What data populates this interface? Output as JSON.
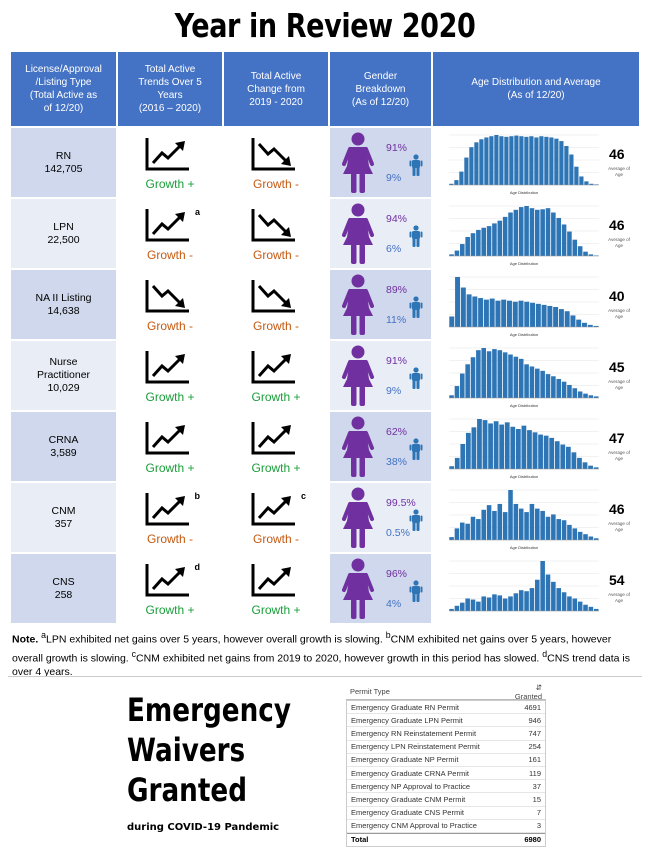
{
  "title": "Year in Review 2020",
  "headers": [
    "License/Approval\n/Listing Type\n(Total Active as\nof 12/20)",
    "Total Active\nTrends Over 5\nYears\n(2016 – 2020)",
    "Total Active\nChange from\n2019 - 2020",
    "Gender\nBreakdown\n(As of 12/20)",
    "Age Distribution and Average\n(As of 12/20)"
  ],
  "colors": {
    "header": "#4472c4",
    "female": "#7030a0",
    "male": "#2e75b6",
    "growth_up": "#1a9e3a",
    "growth_down": "#c55a11",
    "bar": "#2e75b6"
  },
  "rows": [
    {
      "name": "RN",
      "total": "142,705",
      "trend5": "up",
      "trend5_label": "Growth +",
      "trend5_note": "",
      "change": "down",
      "change_label": "Growth -",
      "change_note": "",
      "female_pct": "91%",
      "male_pct": "9%",
      "avg_age": "46",
      "avg_label": "Average of\nAge"
    },
    {
      "name": "LPN",
      "total": "22,500",
      "trend5": "up",
      "trend5_label": "Growth -",
      "trend5_note": "a",
      "change": "down",
      "change_label": "Growth -",
      "change_note": "",
      "female_pct": "94%",
      "male_pct": "6%",
      "avg_age": "46",
      "avg_label": "Average of\nAge"
    },
    {
      "name": "NA II Listing",
      "total": "14,638",
      "trend5": "down",
      "trend5_label": "Growth -",
      "trend5_note": "",
      "change": "down",
      "change_label": "Growth -",
      "change_note": "",
      "female_pct": "89%",
      "male_pct": "11%",
      "avg_age": "40",
      "avg_label": "Average of\nAge"
    },
    {
      "name": "Nurse\nPractitioner",
      "total": "10,029",
      "trend5": "up",
      "trend5_label": "Growth +",
      "trend5_note": "",
      "change": "up",
      "change_label": "Growth +",
      "change_note": "",
      "female_pct": "91%",
      "male_pct": "9%",
      "avg_age": "45",
      "avg_label": "Average of\nAge"
    },
    {
      "name": "CRNA",
      "total": "3,589",
      "trend5": "up",
      "trend5_label": "Growth +",
      "trend5_note": "",
      "change": "up",
      "change_label": "Growth +",
      "change_note": "",
      "female_pct": "62%",
      "male_pct": "38%",
      "avg_age": "47",
      "avg_label": "Average of\nAge"
    },
    {
      "name": "CNM",
      "total": "357",
      "trend5": "up",
      "trend5_label": "Growth -",
      "trend5_note": "b",
      "change": "up",
      "change_label": "Growth -",
      "change_note": "c",
      "female_pct": "99.5%",
      "male_pct": "0.5%",
      "avg_age": "46",
      "avg_label": "Average of\nAge"
    },
    {
      "name": "CNS",
      "total": "258",
      "trend5": "up",
      "trend5_label": "Growth +",
      "trend5_note": "d",
      "change": "up",
      "change_label": "Growth +",
      "change_note": "",
      "female_pct": "96%",
      "male_pct": "4%",
      "avg_age": "54",
      "avg_label": "Average of\nAge"
    }
  ],
  "chart_data": [
    {
      "type": "bar",
      "title": "RN",
      "xlabel": "Age Distribution",
      "values": [
        2,
        8,
        22,
        45,
        62,
        70,
        75,
        78,
        80,
        82,
        80,
        79,
        80,
        81,
        80,
        79,
        80,
        78,
        80,
        79,
        78,
        76,
        72,
        64,
        50,
        30,
        14,
        6,
        2,
        1
      ]
    },
    {
      "type": "bar",
      "title": "LPN",
      "xlabel": "Age Distribution",
      "values": [
        3,
        10,
        22,
        35,
        42,
        48,
        52,
        55,
        60,
        65,
        72,
        80,
        85,
        90,
        92,
        88,
        85,
        86,
        88,
        80,
        70,
        58,
        45,
        30,
        18,
        8,
        3,
        1
      ]
    },
    {
      "type": "bar",
      "title": "NA II Listing",
      "xlabel": "Age Distribution",
      "values": [
        20,
        95,
        75,
        62,
        58,
        55,
        52,
        54,
        50,
        52,
        50,
        48,
        50,
        48,
        46,
        44,
        42,
        40,
        38,
        34,
        30,
        22,
        14,
        8,
        4,
        2
      ]
    },
    {
      "type": "bar",
      "title": "Nurse Practitioner",
      "xlabel": "Age Distribution",
      "values": [
        5,
        22,
        45,
        62,
        75,
        88,
        92,
        86,
        90,
        88,
        84,
        80,
        76,
        72,
        62,
        58,
        54,
        50,
        44,
        40,
        35,
        30,
        24,
        18,
        12,
        8,
        5,
        3
      ]
    },
    {
      "type": "bar",
      "title": "CRNA",
      "xlabel": "Age Distribution",
      "values": [
        5,
        20,
        45,
        65,
        75,
        90,
        88,
        82,
        86,
        80,
        84,
        76,
        72,
        78,
        70,
        66,
        62,
        60,
        56,
        50,
        44,
        40,
        30,
        20,
        12,
        6,
        3
      ]
    },
    {
      "type": "bar",
      "title": "CNM",
      "xlabel": "Age Distribution",
      "values": [
        5,
        20,
        30,
        28,
        40,
        36,
        52,
        60,
        50,
        62,
        48,
        86,
        62,
        54,
        48,
        62,
        54,
        50,
        40,
        44,
        36,
        34,
        26,
        20,
        14,
        10,
        6,
        3
      ]
    },
    {
      "type": "bar",
      "title": "CNS",
      "xlabel": "",
      "values": [
        4,
        10,
        16,
        24,
        22,
        18,
        28,
        26,
        32,
        30,
        24,
        28,
        34,
        40,
        38,
        44,
        60,
        96,
        70,
        56,
        44,
        36,
        28,
        24,
        18,
        12,
        8,
        4
      ]
    }
  ],
  "note": "Note. a LPN exhibited net gains over 5 years, however overall growth is slowing. b CNM exhibited net gains over 5 years, however overall growth is slowing. c CNM exhibited net gains from 2019 to 2020, however growth in this period has slowed. d CNS trend data is over 4 years.",
  "note_parts": {
    "prefix": "Note.",
    "a": "LPN exhibited net gains over 5 years, however overall growth is slowing.",
    "b": "CNM exhibited net gains over 5 years, however overall growth is slowing.",
    "c": "CNM exhibited net gains from 2019 to 2020, however growth in this period has slowed.",
    "d": "CNS trend data is over 4 years."
  },
  "waivers": {
    "title_lines": [
      "Emergency",
      "Waivers",
      "Granted"
    ],
    "subtitle": "during COVID-19 Pandemic",
    "col_type": "Permit Type",
    "col_granted": "Granted",
    "permits": [
      {
        "type": "Emergency Graduate RN Permit",
        "granted": "4691"
      },
      {
        "type": "Emergency Graduate LPN Permit",
        "granted": "946"
      },
      {
        "type": "Emergency RN Reinstatement Permit",
        "granted": "747"
      },
      {
        "type": "Emergency LPN Reinstatement Permit",
        "granted": "254"
      },
      {
        "type": "Emergency Graduate NP Permit",
        "granted": "161"
      },
      {
        "type": "Emergency Graduate CRNA Permit",
        "granted": "119"
      },
      {
        "type": "Emergency NP Approval to Practice",
        "granted": "37"
      },
      {
        "type": "Emergency Graduate CNM Permit",
        "granted": "15"
      },
      {
        "type": "Emergency Graduate CNS Permit",
        "granted": "7"
      },
      {
        "type": "Emergency CNM Approval to Practice",
        "granted": "3"
      }
    ],
    "total_label": "Total",
    "total": "6980"
  }
}
